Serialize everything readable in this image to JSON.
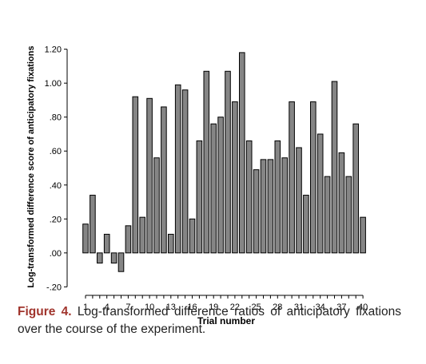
{
  "chart_data": {
    "type": "bar",
    "title": "",
    "xlabel": "Trial number",
    "ylabel": "Log-transformed difference score of anticipatory fixations",
    "ylim": [
      -0.25,
      1.25
    ],
    "yticks": [
      -0.2,
      0.0,
      0.2,
      0.4,
      0.6,
      0.8,
      1.0,
      1.2
    ],
    "ytick_labels": [
      "-.20",
      ".00",
      ".20",
      ".40",
      ".60",
      ".80",
      "1.00",
      "1.20"
    ],
    "xtick_labels": [
      "1",
      "4",
      "7",
      "10",
      "13",
      "16",
      "19",
      "22",
      "25",
      "28",
      "31",
      "34",
      "37",
      "40"
    ],
    "categories": [
      1,
      2,
      3,
      4,
      5,
      6,
      7,
      8,
      9,
      10,
      11,
      12,
      13,
      14,
      15,
      16,
      17,
      18,
      19,
      20,
      21,
      22,
      23,
      24,
      25,
      26,
      27,
      28,
      29,
      30,
      31,
      32,
      33,
      34,
      35,
      36,
      37,
      38,
      39,
      40
    ],
    "values": [
      0.17,
      0.34,
      -0.06,
      0.11,
      -0.06,
      -0.11,
      0.16,
      0.92,
      0.21,
      0.91,
      0.56,
      0.86,
      0.11,
      0.99,
      0.96,
      0.2,
      0.66,
      1.07,
      0.76,
      0.8,
      1.07,
      0.89,
      1.18,
      0.66,
      0.49,
      0.55,
      0.55,
      0.66,
      0.56,
      0.89,
      0.62,
      0.34,
      0.89,
      0.7,
      0.45,
      1.01,
      0.59,
      0.45,
      0.76,
      0.21
    ],
    "grid": false
  },
  "caption": {
    "label": "Figure 4.",
    "text": " Log-transformed difference ratios of anticipatory fixations over the course of the experiment."
  }
}
